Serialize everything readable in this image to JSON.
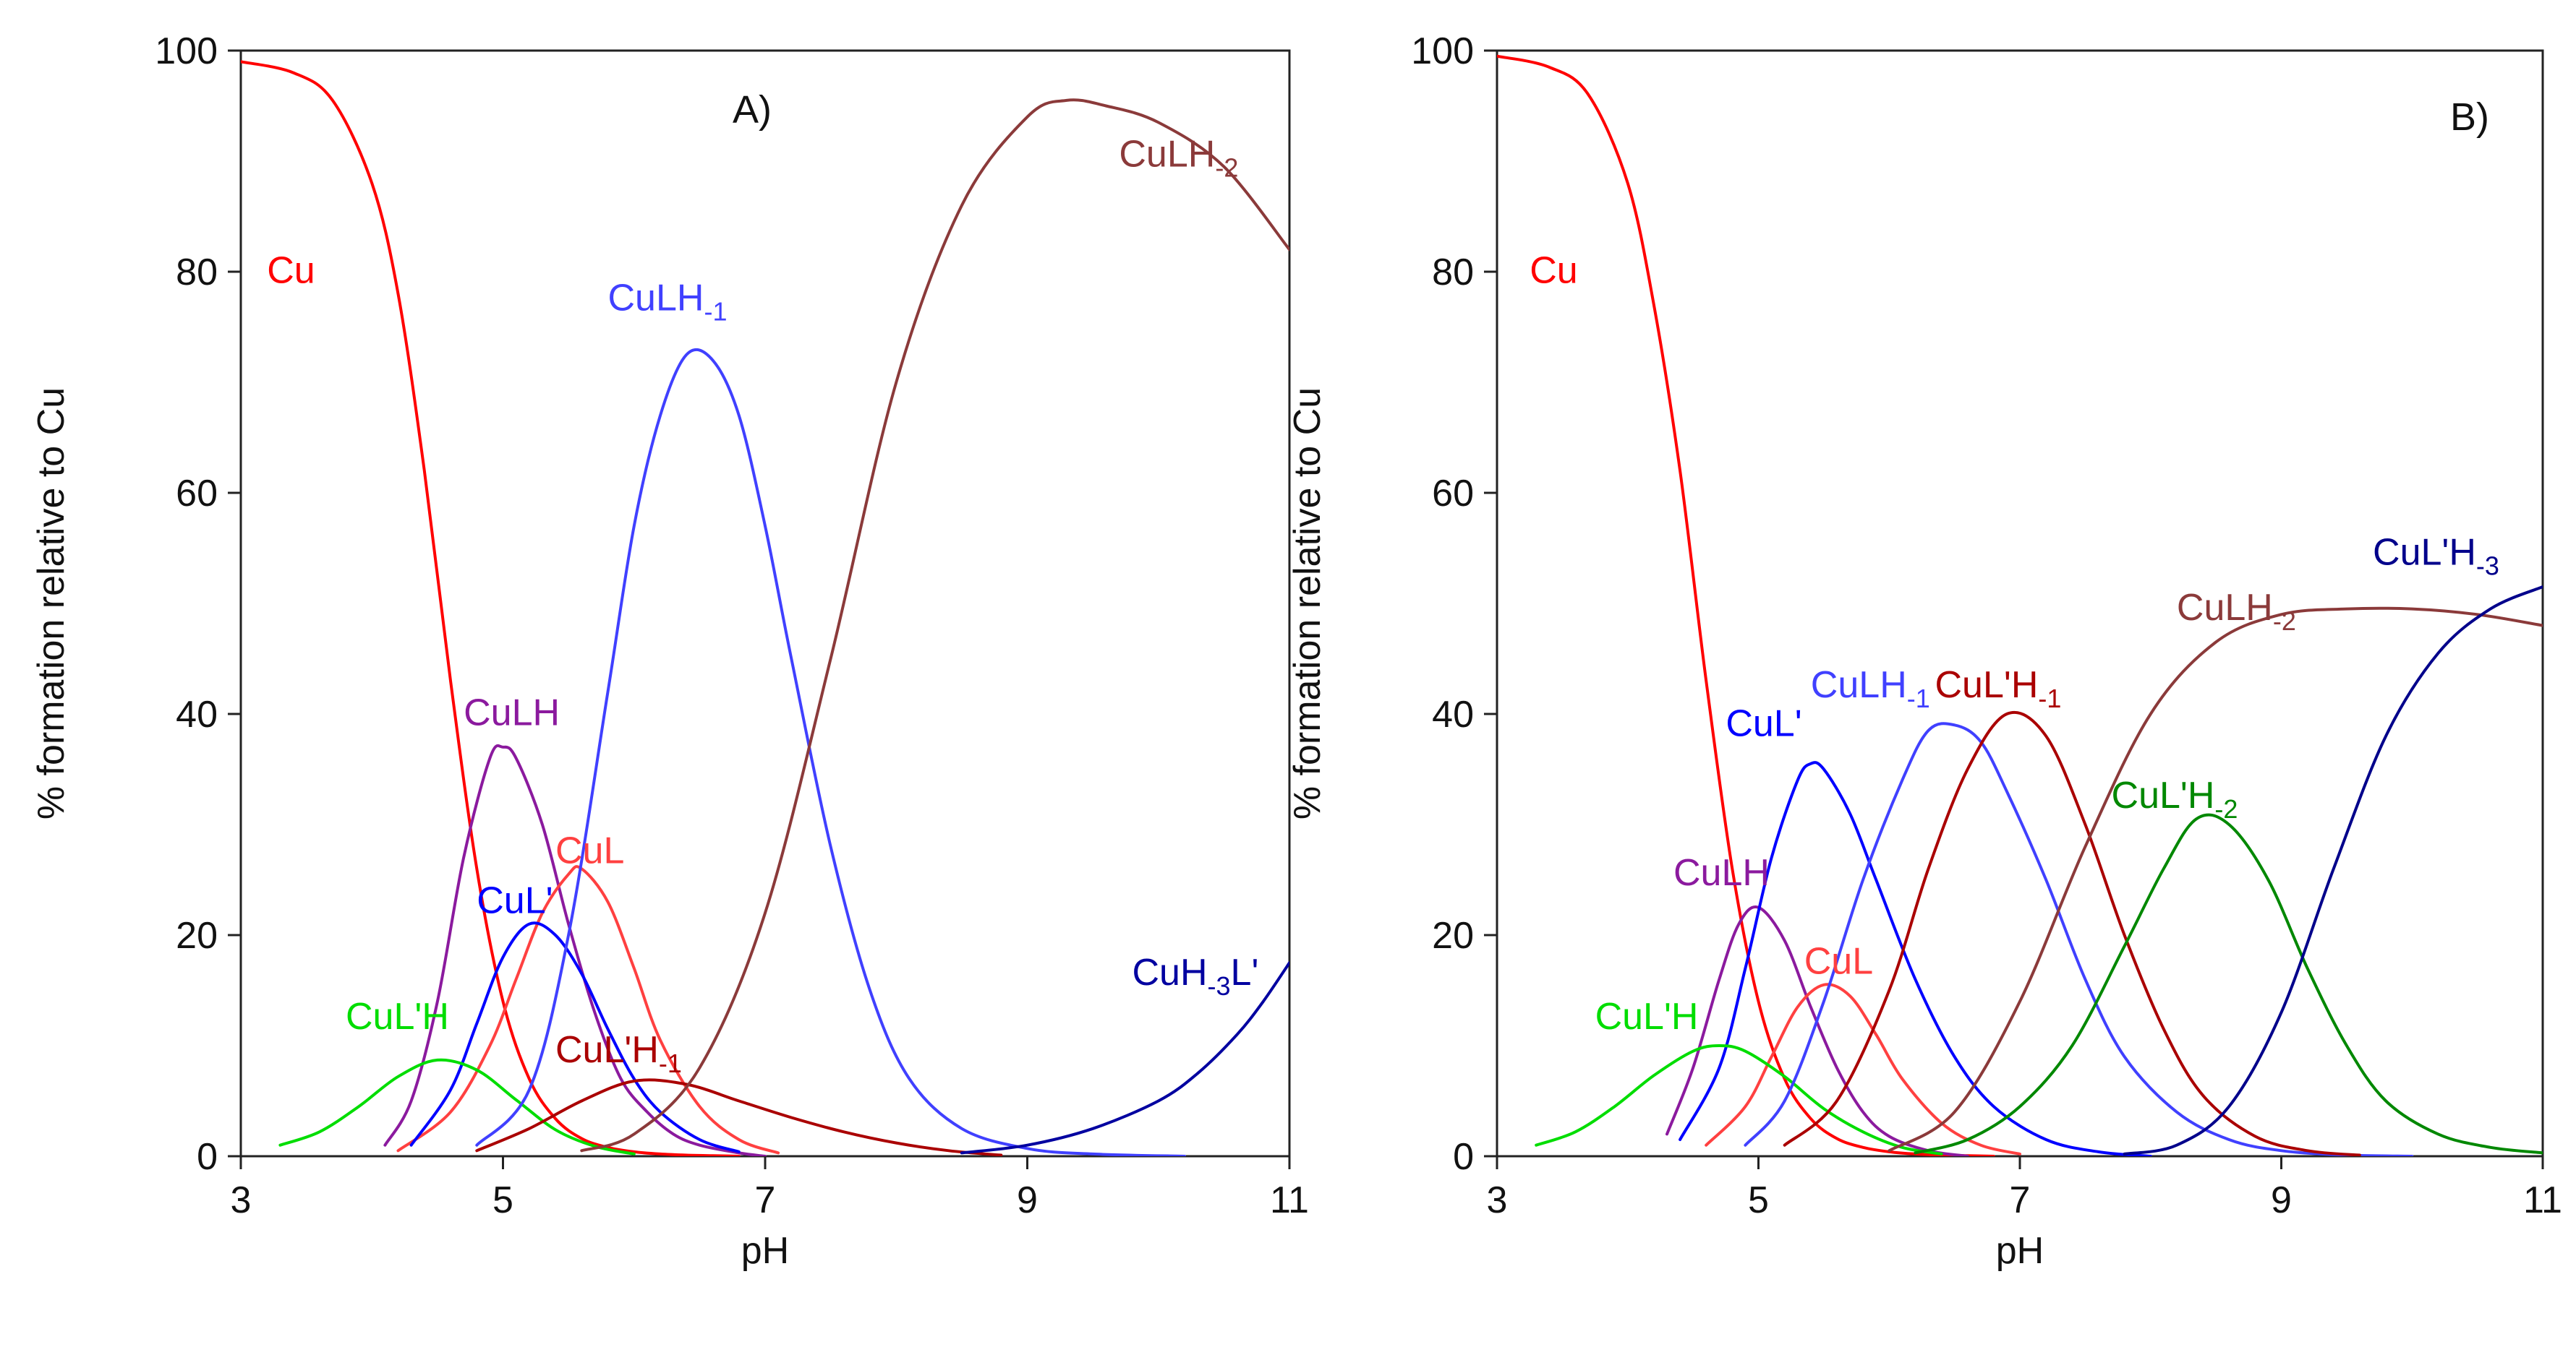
{
  "chart_data": [
    {
      "type": "line",
      "panel_label": "A)",
      "xlabel": "pH",
      "ylabel": "% formation relative to Cu",
      "xlim": [
        3,
        11
      ],
      "ylim": [
        0,
        100
      ],
      "xticks": [
        "3",
        "5",
        "7",
        "9",
        "11"
      ],
      "yticks": [
        "0",
        "20",
        "40",
        "60",
        "80",
        "100"
      ],
      "grid": false,
      "legend": "none",
      "series": [
        {
          "name": "Cu",
          "sub": "",
          "tail": "",
          "color": "#ff0000",
          "label_x": 3.2,
          "label_y": 79,
          "x": [
            3,
            3.4,
            3.7,
            4.0,
            4.2,
            4.4,
            4.6,
            4.8,
            5.0,
            5.2,
            5.4,
            5.6,
            5.8,
            6.0,
            6.2,
            6.4,
            6.6,
            6.8
          ],
          "y": [
            99,
            98,
            95.5,
            88,
            78,
            62,
            43,
            26,
            14,
            7,
            3.4,
            1.6,
            0.8,
            0.4,
            0.2,
            0.1,
            0.05,
            0
          ]
        },
        {
          "name": "CuLH",
          "sub": "",
          "tail": "",
          "color": "#8b1a9e",
          "label_x": 4.7,
          "label_y": 39,
          "x": [
            4.1,
            4.3,
            4.5,
            4.7,
            4.9,
            5.0,
            5.1,
            5.3,
            5.5,
            5.7,
            5.9,
            6.1,
            6.3,
            6.5,
            6.8,
            7.0
          ],
          "y": [
            1,
            5,
            14,
            27,
            36,
            37,
            36,
            30,
            21,
            13,
            7,
            4,
            2,
            1,
            0.3,
            0
          ]
        },
        {
          "name": "CuL",
          "sub": "",
          "tail": "",
          "color": "#ff4040",
          "label_x": 5.4,
          "label_y": 26.5,
          "x": [
            4.2,
            4.6,
            4.9,
            5.1,
            5.3,
            5.5,
            5.6,
            5.8,
            6.0,
            6.2,
            6.5,
            6.8,
            7.1
          ],
          "y": [
            0.5,
            4,
            10,
            16,
            22,
            25.5,
            26,
            23,
            17,
            10.5,
            4.5,
            1.5,
            0.3
          ]
        },
        {
          "name": "CuL'",
          "sub": "",
          "tail": "",
          "color": "#0000ff",
          "label_x": 4.8,
          "label_y": 22,
          "x": [
            4.3,
            4.6,
            4.8,
            5.0,
            5.2,
            5.4,
            5.6,
            5.8,
            6.0,
            6.2,
            6.5,
            6.8
          ],
          "y": [
            1,
            6,
            12,
            18,
            21,
            20,
            16.5,
            11.5,
            7,
            4,
            1.5,
            0.4
          ]
        },
        {
          "name": "CuL'H",
          "sub": "",
          "tail": "",
          "color": "#00dd00",
          "label_x": 3.8,
          "label_y": 11.5,
          "x": [
            3.3,
            3.6,
            3.9,
            4.2,
            4.5,
            4.8,
            5.1,
            5.4,
            5.7,
            6.0
          ],
          "y": [
            1,
            2.2,
            4.5,
            7.2,
            8.7,
            7.8,
            5.1,
            2.4,
            0.9,
            0.2
          ]
        },
        {
          "name": "CuL'H",
          "sub": "-1",
          "tail": "",
          "color": "#aa0000",
          "label_x": 5.4,
          "label_y": 8.5,
          "x": [
            4.8,
            5.2,
            5.6,
            6.0,
            6.4,
            6.8,
            7.2,
            7.6,
            8.0,
            8.4,
            8.8
          ],
          "y": [
            0.5,
            2.5,
            5,
            6.8,
            6.5,
            5,
            3.5,
            2.2,
            1.2,
            0.5,
            0.1
          ]
        },
        {
          "name": "CuLH",
          "sub": "-1",
          "tail": "",
          "color": "#4040ff",
          "label_x": 5.8,
          "label_y": 76.5,
          "x": [
            4.8,
            5.2,
            5.5,
            5.8,
            6.0,
            6.2,
            6.4,
            6.6,
            6.8,
            7.0,
            7.2,
            7.5,
            7.8,
            8.1,
            8.5,
            9.0,
            9.5,
            10.2
          ],
          "y": [
            1,
            6,
            20,
            42,
            57,
            67,
            72.5,
            72,
            67,
            57,
            45,
            28,
            15,
            7,
            2.5,
            0.7,
            0.2,
            0
          ]
        },
        {
          "name": "CuLH",
          "sub": "-2",
          "tail": "",
          "color": "#8b3a3a",
          "label_x": 9.7,
          "label_y": 89.5,
          "x": [
            5.6,
            6.0,
            6.5,
            7.0,
            7.5,
            8.0,
            8.5,
            9.0,
            9.3,
            9.6,
            10.0,
            10.5,
            11.0
          ],
          "y": [
            0.5,
            2,
            8,
            22,
            45,
            70,
            86,
            94,
            95.5,
            95,
            93.5,
            89.5,
            82
          ]
        },
        {
          "name": "CuH",
          "sub": "-3",
          "tail": "L'",
          "color": "#0000a0",
          "label_x": 9.8,
          "label_y": 15.5,
          "x": [
            8.5,
            9.0,
            9.5,
            10.0,
            10.3,
            10.6,
            10.8,
            11.0
          ],
          "y": [
            0.3,
            1,
            2.5,
            5,
            7.5,
            11,
            14,
            17.5
          ]
        }
      ]
    },
    {
      "type": "line",
      "panel_label": "B)",
      "xlabel": "pH",
      "ylabel": "% formation relative to Cu",
      "xlim": [
        3,
        11
      ],
      "ylim": [
        0,
        100
      ],
      "xticks": [
        "3",
        "5",
        "7",
        "9",
        "11"
      ],
      "yticks": [
        "0",
        "20",
        "40",
        "60",
        "80",
        "100"
      ],
      "grid": false,
      "legend": "none",
      "series": [
        {
          "name": "Cu",
          "sub": "",
          "tail": "",
          "color": "#ff0000",
          "label_x": 3.25,
          "label_y": 79,
          "x": [
            3,
            3.4,
            3.7,
            4.0,
            4.2,
            4.4,
            4.6,
            4.8,
            5.0,
            5.2,
            5.4,
            5.6,
            5.8,
            6.0,
            6.2,
            6.4,
            6.6,
            6.8
          ],
          "y": [
            99.5,
            98.5,
            96,
            88,
            77,
            62,
            43,
            26,
            14,
            7,
            3.4,
            1.6,
            0.8,
            0.4,
            0.2,
            0.1,
            0.05,
            0
          ]
        },
        {
          "name": "CuLH",
          "sub": "",
          "tail": "",
          "color": "#8b1a9e",
          "label_x": 4.35,
          "label_y": 24.5,
          "x": [
            4.3,
            4.5,
            4.7,
            4.85,
            5.0,
            5.2,
            5.4,
            5.6,
            5.8,
            6.0,
            6.3,
            6.6
          ],
          "y": [
            2,
            8,
            16,
            21,
            22.5,
            19.5,
            13.5,
            8,
            4,
            1.8,
            0.5,
            0
          ]
        },
        {
          "name": "CuL",
          "sub": "",
          "tail": "",
          "color": "#ff4040",
          "label_x": 5.35,
          "label_y": 16.5,
          "x": [
            4.6,
            4.9,
            5.1,
            5.3,
            5.5,
            5.7,
            5.9,
            6.1,
            6.4,
            6.7,
            7.0
          ],
          "y": [
            1,
            4.5,
            9,
            13.5,
            15.5,
            14.5,
            11,
            7,
            3,
            1,
            0.2
          ]
        },
        {
          "name": "CuL'",
          "sub": "",
          "tail": "",
          "color": "#0000ff",
          "label_x": 4.75,
          "label_y": 38,
          "x": [
            4.4,
            4.7,
            4.9,
            5.1,
            5.3,
            5.4,
            5.5,
            5.7,
            5.9,
            6.2,
            6.5,
            6.8,
            7.2,
            7.6,
            8.0
          ],
          "y": [
            1.5,
            8,
            17,
            27,
            34,
            35.5,
            35,
            31,
            25,
            16,
            9,
            4.5,
            1.5,
            0.4,
            0
          ]
        },
        {
          "name": "CuL'H",
          "sub": "",
          "tail": "",
          "color": "#00dd00",
          "label_x": 3.75,
          "label_y": 11.5,
          "x": [
            3.3,
            3.6,
            3.9,
            4.2,
            4.5,
            4.7,
            4.9,
            5.2,
            5.5,
            5.8,
            6.1,
            6.4
          ],
          "y": [
            1,
            2.2,
            4.5,
            7.3,
            9.5,
            10,
            9.5,
            7.2,
            4.3,
            2.2,
            0.8,
            0.2
          ]
        },
        {
          "name": "CuLH",
          "sub": "-1",
          "tail": "",
          "color": "#4040ff",
          "label_x": 5.4,
          "label_y": 41.5,
          "x": [
            4.9,
            5.2,
            5.5,
            5.8,
            6.1,
            6.3,
            6.5,
            6.7,
            6.9,
            7.2,
            7.5,
            7.8,
            8.2,
            8.6,
            9.0,
            9.5,
            10.0
          ],
          "y": [
            1,
            5,
            14,
            25,
            34,
            38.5,
            39,
            37.5,
            33,
            25,
            16,
            9,
            4,
            1.5,
            0.5,
            0.1,
            0
          ]
        },
        {
          "name": "CuL'H",
          "sub": "-1",
          "tail": "",
          "color": "#aa0000",
          "label_x": 6.35,
          "label_y": 41.5,
          "x": [
            5.2,
            5.6,
            6.0,
            6.3,
            6.6,
            6.9,
            7.2,
            7.5,
            7.8,
            8.1,
            8.4,
            8.8,
            9.2,
            9.6
          ],
          "y": [
            1,
            5,
            15,
            26,
            35,
            40,
            38,
            30,
            20,
            11.5,
            5.5,
            1.8,
            0.5,
            0.1
          ]
        },
        {
          "name": "CuLH",
          "sub": "-2",
          "tail": "",
          "color": "#8b3a3a",
          "label_x": 8.2,
          "label_y": 48.5,
          "x": [
            6.0,
            6.5,
            7.0,
            7.5,
            8.0,
            8.5,
            9.0,
            9.5,
            10.0,
            10.5,
            11.0
          ],
          "y": [
            0.5,
            4,
            14,
            28,
            40,
            46.5,
            49,
            49.5,
            49.5,
            49,
            48
          ]
        },
        {
          "name": "CuL'H",
          "sub": "-2",
          "tail": "",
          "color": "#008800",
          "label_x": 7.7,
          "label_y": 31.5,
          "x": [
            6.2,
            6.6,
            7.0,
            7.4,
            7.8,
            8.1,
            8.35,
            8.6,
            8.9,
            9.2,
            9.5,
            9.8,
            10.2,
            10.6,
            11.0
          ],
          "y": [
            0.3,
            1.5,
            4.5,
            10,
            19,
            26,
            30.5,
            30,
            25,
            17,
            10,
            5,
            2,
            0.8,
            0.3
          ]
        },
        {
          "name": "CuL'H",
          "sub": "-3",
          "tail": "",
          "color": "#00008b",
          "label_x": 9.7,
          "label_y": 53.5,
          "x": [
            7.8,
            8.2,
            8.6,
            9.0,
            9.4,
            9.8,
            10.2,
            10.6,
            11.0
          ],
          "y": [
            0.2,
            1,
            4.5,
            13,
            26,
            38,
            45.5,
            49.5,
            51.5
          ]
        }
      ]
    }
  ]
}
